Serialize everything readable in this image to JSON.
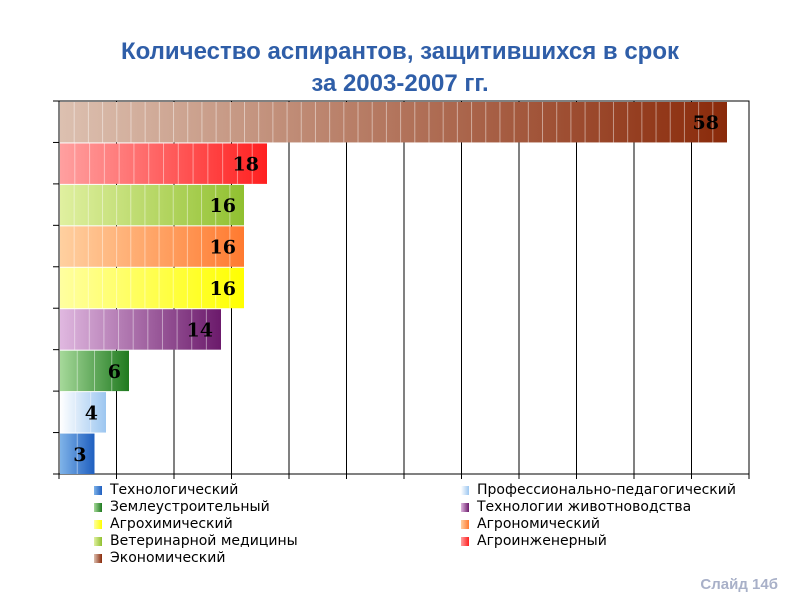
{
  "title_line1": "Количество аспирантов, защитившихся в срок",
  "title_line2": "за 2003-2007 гг.",
  "slide_label": "Слайд 14б",
  "chart_data": {
    "type": "bar",
    "orientation": "horizontal",
    "categories": [
      "Технологический",
      "Профессионально-педагогический",
      "Землеустроительный",
      "Технологии животноводства",
      "Агрохимический",
      "Агрономический",
      "Ветеринарной медицины",
      "Агроинженерный",
      "Экономический"
    ],
    "values": [
      3,
      4,
      6,
      14,
      16,
      16,
      16,
      18,
      58
    ],
    "colors": [
      [
        "#7fb3e8",
        "#1f5fc0"
      ],
      [
        "#ffffff",
        "#9cc6f0"
      ],
      [
        "#a6d99a",
        "#1f7a1f"
      ],
      [
        "#e0b8e0",
        "#6b1a6b"
      ],
      [
        "#ffffa0",
        "#ffff00"
      ],
      [
        "#ffd0a0",
        "#ff7a30"
      ],
      [
        "#e0f0a0",
        "#90c030"
      ],
      [
        "#ffa0a0",
        "#ff2020"
      ],
      [
        "#dcc0b0",
        "#8a2a0a"
      ]
    ],
    "xlim": [
      0,
      60
    ],
    "grid": true,
    "legend": "bottom",
    "title": "Количество аспирантов, защитившихся в срок за 2003-2007 гг."
  }
}
